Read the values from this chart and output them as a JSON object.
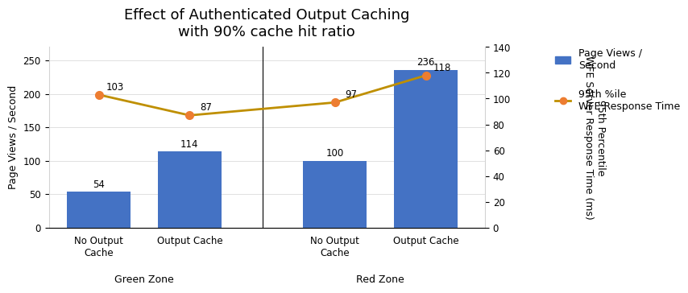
{
  "title": "Effect of Authenticated Output Caching\nwith 90% cache hit ratio",
  "categories": [
    "No Output\nCache",
    "Output Cache",
    "No Output\nCache",
    "Output Cache"
  ],
  "group_labels": [
    "Green Zone",
    "Red Zone"
  ],
  "bar_values": [
    54,
    114,
    100,
    236
  ],
  "line_values": [
    103,
    87,
    97,
    118
  ],
  "bar_color": "#4472C4",
  "line_color": "#BF8F00",
  "marker_color": "#ED7D31",
  "ylabel_left": "Page Views / Second",
  "ylabel_right": "95th Percentile\nWFE Server Response Time (ms)",
  "ylim_left": [
    0,
    270
  ],
  "ylim_right": [
    0,
    140
  ],
  "yticks_left": [
    0,
    50,
    100,
    150,
    200,
    250
  ],
  "yticks_right": [
    0,
    20,
    40,
    60,
    80,
    100,
    120,
    140
  ],
  "legend_bar_label": "Page Views /\nSecond",
  "legend_line_label": "95th %ile\nWFE Response Time",
  "background_color": "#FFFFFF",
  "title_fontsize": 13,
  "label_fontsize": 9,
  "tick_fontsize": 8.5,
  "bar_label_fontsize": 8.5,
  "line_label_fontsize": 8.5,
  "x_positions": [
    0,
    1,
    2.6,
    3.6
  ],
  "bar_width": 0.7,
  "xlim": [
    -0.55,
    4.25
  ]
}
